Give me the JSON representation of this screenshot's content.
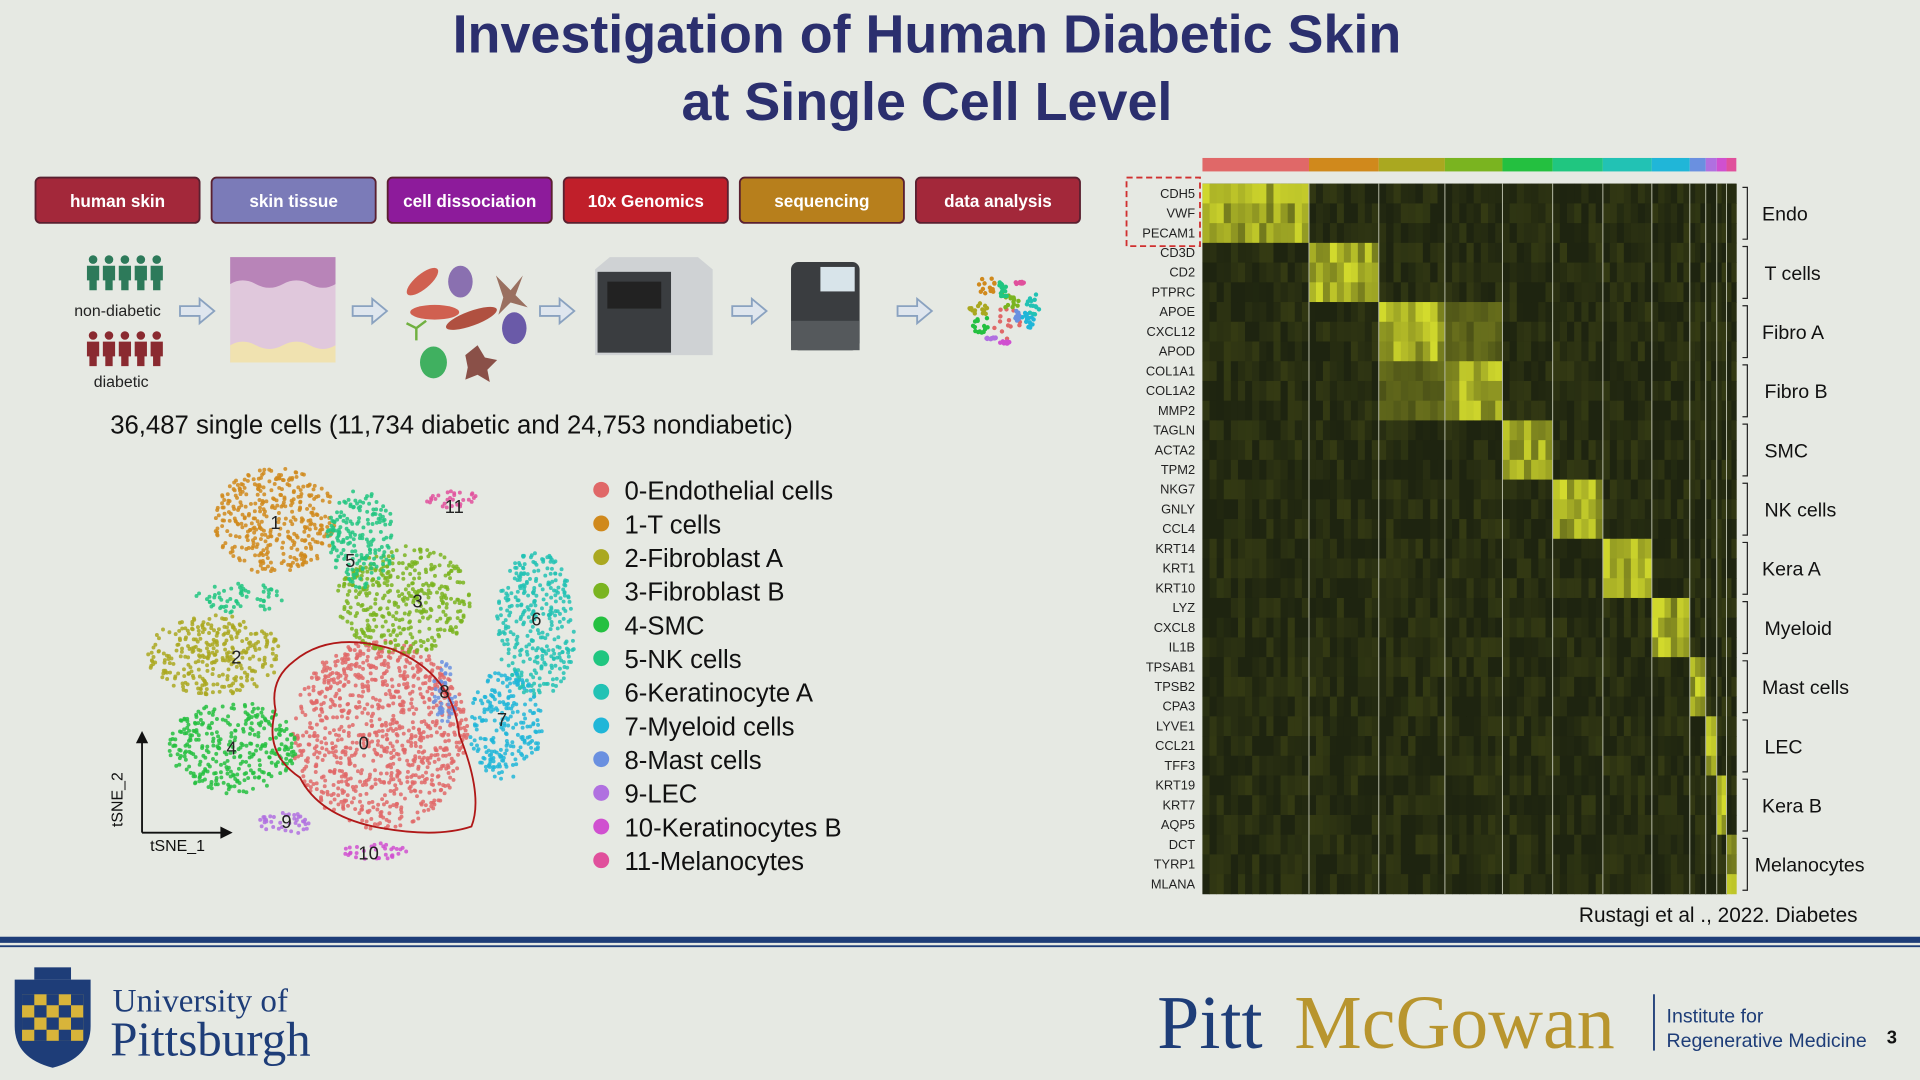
{
  "title": [
    "Investigation of Human Diabetic Skin",
    "at Single Cell Level"
  ],
  "workflow": [
    "human skin",
    "skin tissue",
    "cell dissociation",
    "10x Genomics",
    "sequencing",
    "data analysis"
  ],
  "cohort": {
    "non_diabetic": "non-diabetic",
    "diabetic": "diabetic"
  },
  "cell_count": "36,487 single cells (11,734 diabetic and 24,753 nondiabetic)",
  "tsne": {
    "x_label": "tSNE_1",
    "y_label": "tSNE_2",
    "clusters": [
      "0",
      "1",
      "2",
      "3",
      "4",
      "5",
      "6",
      "7",
      "8",
      "9",
      "10",
      "11"
    ]
  },
  "legend": [
    {
      "label": "0-Endothelial cells",
      "color": "#e06868"
    },
    {
      "label": "1-T cells",
      "color": "#d0891c"
    },
    {
      "label": "2-Fibroblast A",
      "color": "#aaa820"
    },
    {
      "label": "3-Fibroblast B",
      "color": "#7ab420"
    },
    {
      "label": "4-SMC",
      "color": "#24c040"
    },
    {
      "label": "5-NK cells",
      "color": "#20c680"
    },
    {
      "label": "6-Keratinocyte A",
      "color": "#22c2b4"
    },
    {
      "label": "7-Myeloid cells",
      "color": "#20b6d8"
    },
    {
      "label": "8-Mast cells",
      "color": "#6a90e0"
    },
    {
      "label": "9-LEC",
      "color": "#b070e0"
    },
    {
      "label": "10-Keratinocytes B",
      "color": "#d050d0"
    },
    {
      "label": "11-Melanocytes",
      "color": "#e0509c"
    }
  ],
  "heatmap": {
    "genes": [
      "CDH5",
      "VWF",
      "PECAM1",
      "CD3D",
      "CD2",
      "PTPRC",
      "APOE",
      "CXCL12",
      "APOD",
      "COL1A1",
      "COL1A2",
      "MMP2",
      "TAGLN",
      "ACTA2",
      "TPM2",
      "NKG7",
      "GNLY",
      "CCL4",
      "KRT14",
      "KRT1",
      "KRT10",
      "LYZ",
      "CXCL8",
      "IL1B",
      "TPSAB1",
      "TPSB2",
      "CPA3",
      "LYVE1",
      "CCL21",
      "TFF3",
      "KRT19",
      "KRT7",
      "AQP5",
      "DCT",
      "TYRP1",
      "MLANA"
    ],
    "groups": [
      "Endo",
      "T cells",
      "Fibro A",
      "Fibro B",
      "SMC",
      "NK cells",
      "Kera A",
      "Myeloid",
      "Mast cells",
      "LEC",
      "Kera B",
      "Melanocytes"
    ]
  },
  "citation": "Rustagi et al ., 2022. Diabetes",
  "footer": {
    "university": [
      "University of",
      "Pittsburgh"
    ],
    "brand": [
      "Pitt",
      "McGowan"
    ],
    "institute": [
      "Institute for",
      "Regenerative Medicine"
    ],
    "page": "3"
  }
}
